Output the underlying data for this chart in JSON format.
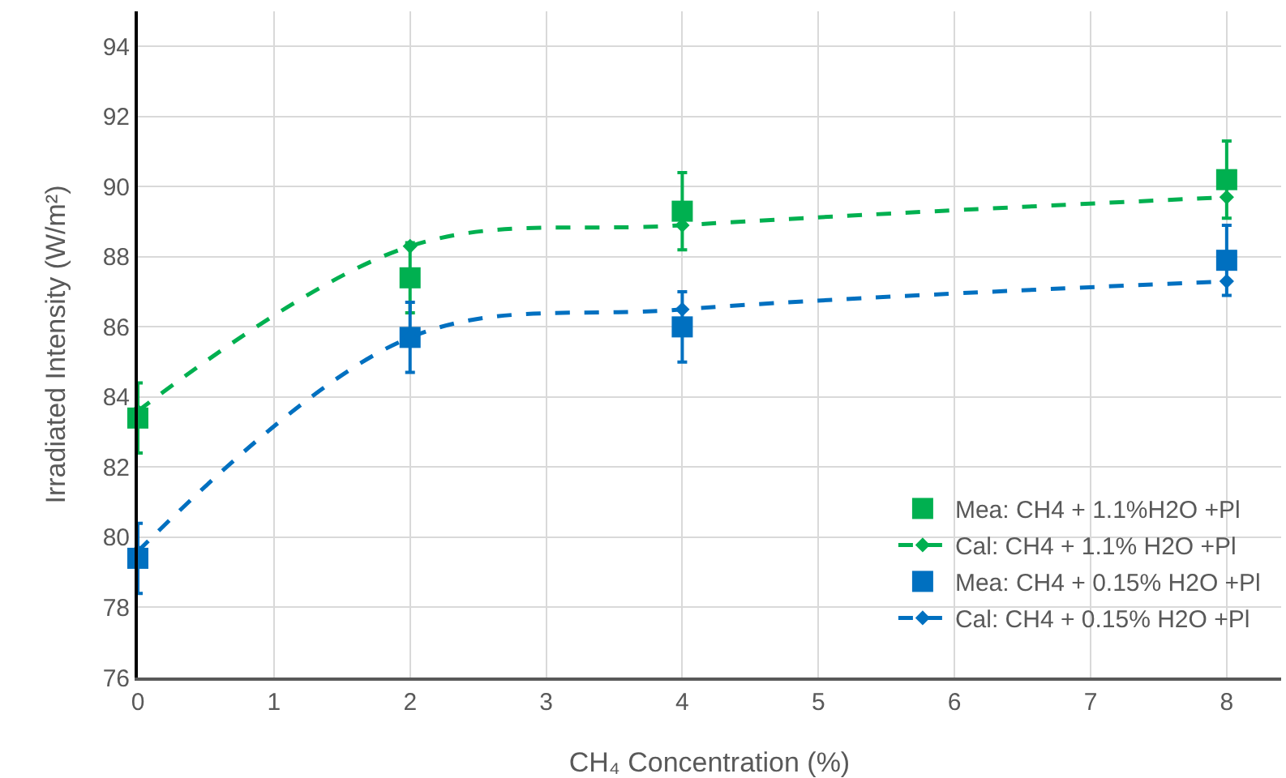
{
  "chart_data": {
    "type": "scatter",
    "xlabel": "CH₄ Concentration (%)",
    "ylabel": "Irradiated Intensity (W/m²)",
    "x": [
      0,
      2,
      4,
      8
    ],
    "series": [
      {
        "name": "Mea: CH4 + 1.1%H2O +Pl",
        "color": "#00b050",
        "marker": "square",
        "values": [
          83.4,
          87.4,
          89.3,
          90.2
        ],
        "errors": [
          1,
          1,
          1.1,
          1.1
        ]
      },
      {
        "name": "Cal: CH4 + 1.1% H2O +Pl",
        "type": "line",
        "color": "#00b050",
        "marker": "diamond",
        "line_style": "dashed",
        "values": [
          83.6,
          88.3,
          88.9,
          89.7
        ]
      },
      {
        "name": "Mea: CH4 + 0.15% H2O +Pl",
        "color": "#0070c0",
        "marker": "square",
        "values": [
          79.4,
          85.7,
          86.0,
          87.9
        ],
        "errors": [
          1,
          1,
          1,
          1
        ]
      },
      {
        "name": "Cal: CH4 + 0.15% H2O +Pl",
        "type": "line",
        "color": "#0070c0",
        "marker": "diamond",
        "line_style": "dashed",
        "values": [
          79.6,
          85.7,
          86.5,
          87.3
        ]
      }
    ],
    "xlim": [
      0,
      8.4
    ],
    "xticks": [
      0,
      1,
      2,
      3,
      4,
      5,
      6,
      7,
      8
    ],
    "ylim": [
      76,
      95
    ],
    "yticks": [
      76,
      78,
      80,
      82,
      84,
      86,
      88,
      90,
      92,
      94
    ],
    "grid": true,
    "legend": "bottom right"
  }
}
